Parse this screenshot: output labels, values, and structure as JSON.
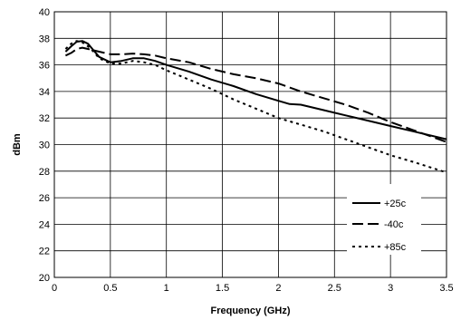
{
  "chart_data": {
    "type": "line",
    "title": "",
    "xlabel": "Frequency (GHz)",
    "ylabel": "dBm",
    "xlim": [
      0,
      3.5
    ],
    "ylim": [
      20,
      40
    ],
    "x_ticks": [
      0,
      0.5,
      1,
      1.5,
      2,
      2.5,
      3,
      3.5
    ],
    "x_tick_labels": [
      "0",
      "0.5",
      "1",
      "1.5",
      "2",
      "2.5",
      "3",
      "3.5"
    ],
    "y_ticks": [
      20,
      22,
      24,
      26,
      28,
      30,
      32,
      34,
      36,
      38,
      40
    ],
    "y_tick_labels": [
      "20",
      "22",
      "24",
      "26",
      "28",
      "30",
      "32",
      "34",
      "36",
      "38",
      "40"
    ],
    "grid": true,
    "legend_position": "bottom-right",
    "series": [
      {
        "name": "+25c",
        "dash": "solid",
        "color": "#000000",
        "points": [
          [
            0.1,
            37.0
          ],
          [
            0.15,
            37.4
          ],
          [
            0.2,
            37.75
          ],
          [
            0.25,
            37.8
          ],
          [
            0.3,
            37.6
          ],
          [
            0.35,
            37.1
          ],
          [
            0.4,
            36.6
          ],
          [
            0.5,
            36.2
          ],
          [
            0.6,
            36.3
          ],
          [
            0.7,
            36.5
          ],
          [
            0.8,
            36.5
          ],
          [
            0.9,
            36.3
          ],
          [
            1.0,
            36.0
          ],
          [
            1.2,
            35.5
          ],
          [
            1.4,
            34.9
          ],
          [
            1.6,
            34.4
          ],
          [
            1.8,
            33.8
          ],
          [
            2.0,
            33.3
          ],
          [
            2.1,
            33.05
          ],
          [
            2.2,
            33.0
          ],
          [
            2.4,
            32.6
          ],
          [
            2.6,
            32.2
          ],
          [
            2.8,
            31.8
          ],
          [
            3.0,
            31.4
          ],
          [
            3.2,
            31.0
          ],
          [
            3.5,
            30.4
          ]
        ]
      },
      {
        "name": "-40c",
        "dash": "long-dash",
        "color": "#000000",
        "points": [
          [
            0.1,
            36.7
          ],
          [
            0.15,
            36.9
          ],
          [
            0.2,
            37.2
          ],
          [
            0.25,
            37.3
          ],
          [
            0.3,
            37.2
          ],
          [
            0.4,
            37.0
          ],
          [
            0.5,
            36.8
          ],
          [
            0.6,
            36.8
          ],
          [
            0.7,
            36.85
          ],
          [
            0.8,
            36.8
          ],
          [
            0.9,
            36.7
          ],
          [
            1.0,
            36.5
          ],
          [
            1.2,
            36.2
          ],
          [
            1.4,
            35.7
          ],
          [
            1.6,
            35.3
          ],
          [
            1.8,
            35.0
          ],
          [
            2.0,
            34.6
          ],
          [
            2.2,
            34.0
          ],
          [
            2.4,
            33.5
          ],
          [
            2.6,
            33.0
          ],
          [
            2.8,
            32.4
          ],
          [
            3.0,
            31.7
          ],
          [
            3.2,
            31.1
          ],
          [
            3.5,
            30.2
          ]
        ]
      },
      {
        "name": "+85c",
        "dash": "dotted",
        "color": "#000000",
        "points": [
          [
            0.1,
            37.2
          ],
          [
            0.15,
            37.6
          ],
          [
            0.2,
            37.8
          ],
          [
            0.25,
            37.7
          ],
          [
            0.3,
            37.4
          ],
          [
            0.35,
            37.0
          ],
          [
            0.4,
            36.5
          ],
          [
            0.5,
            36.1
          ],
          [
            0.6,
            36.1
          ],
          [
            0.7,
            36.3
          ],
          [
            0.8,
            36.2
          ],
          [
            0.9,
            36.0
          ],
          [
            1.0,
            35.6
          ],
          [
            1.2,
            34.9
          ],
          [
            1.4,
            34.2
          ],
          [
            1.6,
            33.4
          ],
          [
            1.8,
            32.7
          ],
          [
            2.0,
            32.0
          ],
          [
            2.2,
            31.5
          ],
          [
            2.4,
            31.0
          ],
          [
            2.6,
            30.4
          ],
          [
            2.8,
            29.8
          ],
          [
            3.0,
            29.2
          ],
          [
            3.2,
            28.7
          ],
          [
            3.5,
            27.9
          ]
        ]
      }
    ]
  }
}
